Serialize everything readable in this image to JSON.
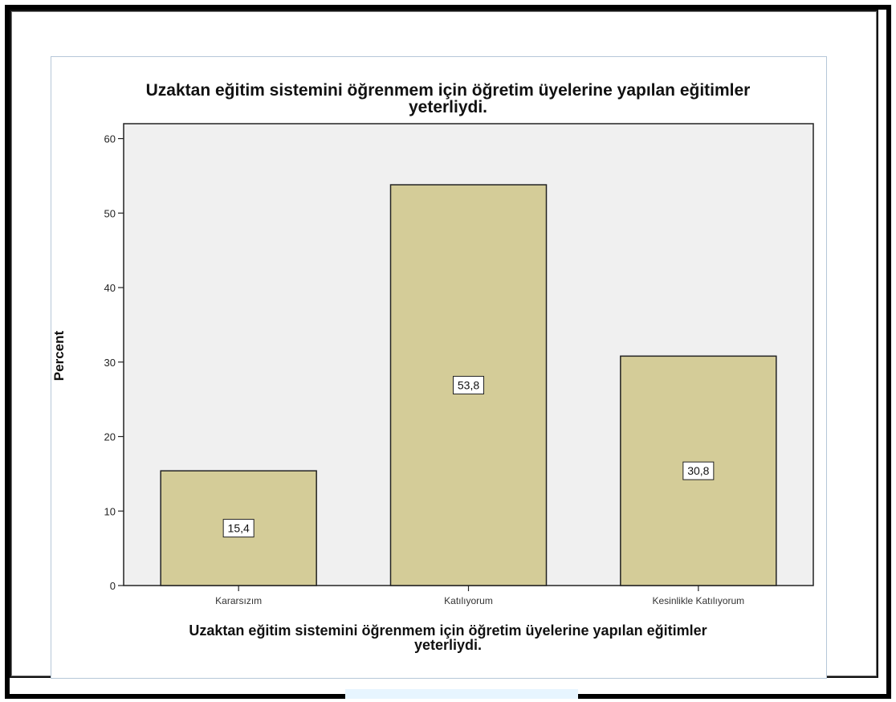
{
  "colors": {
    "plot_background": "#f0f0f0",
    "bar_fill": "#d4cc98",
    "bar_stroke": "#222222",
    "axis": "#222222",
    "frame": "#000000"
  },
  "chart_data": {
    "type": "bar",
    "title": [
      "Uzaktan eğitim sistemini öğrenmem için öğretim üyelerine yapılan eğitimler",
      "yeterliydi."
    ],
    "xlabel": [
      "Uzaktan eğitim sistemini öğrenmem için öğretim üyelerine yapılan eğitimler",
      "yeterliydi."
    ],
    "ylabel": "Percent",
    "categories": [
      "Kararsızım",
      "Katılıyorum",
      "Kesinlikle Katılıyorum"
    ],
    "values": [
      15.4,
      53.8,
      30.8
    ],
    "value_labels": [
      "15,4",
      "53,8",
      "30,8"
    ],
    "ylim": [
      0,
      62
    ],
    "yticks": [
      0,
      10,
      20,
      30,
      40,
      50,
      60
    ],
    "grid": false,
    "legend": "none"
  }
}
